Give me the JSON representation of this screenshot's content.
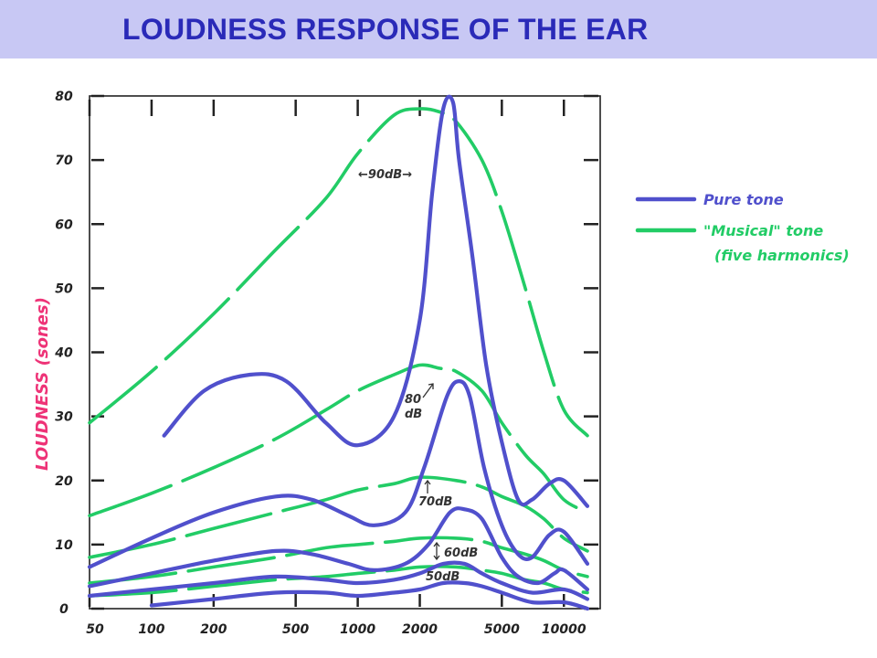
{
  "title": "LOUDNESS RESPONSE OF THE EAR",
  "colors": {
    "pure": "#5050cc",
    "musical": "#22cc66",
    "title_bg": "#c8c8f4",
    "title_text": "#2a2ab8",
    "ylabel": "#ee3377",
    "axis": "#222222"
  },
  "chart_data": {
    "type": "line",
    "title": "",
    "xlabel": "",
    "ylabel": "LOUDNESS (sones)",
    "xscale": "log",
    "xlim": [
      50,
      15000
    ],
    "ylim": [
      0,
      80
    ],
    "grid": false,
    "legend_position": "right",
    "x_ticks": [
      50,
      100,
      200,
      500,
      1000,
      2000,
      5000,
      10000
    ],
    "x_tick_labels": [
      "50",
      "100",
      "200",
      "500",
      "1000",
      "2000",
      "5000",
      "10000"
    ],
    "y_ticks": [
      0,
      10,
      20,
      30,
      40,
      50,
      60,
      70,
      80
    ],
    "y_tick_labels": [
      "0",
      "10",
      "20",
      "30",
      "40",
      "50",
      "60",
      "70",
      "80"
    ],
    "legend": [
      {
        "kind": "pure",
        "label": "Pure tone"
      },
      {
        "kind": "musical",
        "label": "\"Musical\" tone",
        "label2": "(five harmonics)"
      }
    ],
    "annotations": [
      "←90dB→",
      "80",
      "dB",
      "70dB",
      "60dB",
      "50dB"
    ],
    "series": [
      {
        "kind": "pure",
        "level": "90 dB",
        "points": [
          [
            115,
            27
          ],
          [
            180,
            34
          ],
          [
            300,
            36.5
          ],
          [
            450,
            35.5
          ],
          [
            700,
            29
          ],
          [
            1000,
            25.5
          ],
          [
            1500,
            30
          ],
          [
            2000,
            45
          ],
          [
            2300,
            65
          ],
          [
            2600,
            78
          ],
          [
            2900,
            79
          ],
          [
            3100,
            70
          ],
          [
            3600,
            55
          ],
          [
            4200,
            38
          ],
          [
            5000,
            26
          ],
          [
            6000,
            17
          ],
          [
            7000,
            17
          ],
          [
            8500,
            19.5
          ],
          [
            10000,
            20
          ],
          [
            13000,
            16
          ]
        ]
      },
      {
        "kind": "pure",
        "level": "80 dB",
        "points": [
          [
            50,
            6.5
          ],
          [
            100,
            11
          ],
          [
            200,
            15
          ],
          [
            400,
            17.5
          ],
          [
            600,
            17
          ],
          [
            900,
            14.5
          ],
          [
            1200,
            13
          ],
          [
            1700,
            15
          ],
          [
            2100,
            22
          ],
          [
            2700,
            33
          ],
          [
            3100,
            35.5
          ],
          [
            3500,
            33
          ],
          [
            4100,
            22
          ],
          [
            5000,
            13
          ],
          [
            6000,
            8.5
          ],
          [
            7000,
            8
          ],
          [
            8500,
            11.5
          ],
          [
            10000,
            12
          ],
          [
            13000,
            7
          ]
        ]
      },
      {
        "kind": "pure",
        "level": "70 dB",
        "points": [
          [
            50,
            3.5
          ],
          [
            100,
            5.5
          ],
          [
            200,
            7.5
          ],
          [
            400,
            9
          ],
          [
            600,
            8.5
          ],
          [
            900,
            7
          ],
          [
            1200,
            6
          ],
          [
            1700,
            7
          ],
          [
            2200,
            10
          ],
          [
            2800,
            15
          ],
          [
            3300,
            15.5
          ],
          [
            4000,
            14
          ],
          [
            5000,
            8
          ],
          [
            6000,
            5
          ],
          [
            7500,
            4
          ],
          [
            9000,
            5.5
          ],
          [
            10000,
            6
          ],
          [
            13000,
            3
          ]
        ]
      },
      {
        "kind": "pure",
        "level": "60 dB",
        "points": [
          [
            50,
            2
          ],
          [
            100,
            3
          ],
          [
            200,
            4
          ],
          [
            400,
            5
          ],
          [
            700,
            4.5
          ],
          [
            1000,
            4
          ],
          [
            1500,
            4.5
          ],
          [
            2000,
            5.5
          ],
          [
            2600,
            7
          ],
          [
            3300,
            7
          ],
          [
            4000,
            5.5
          ],
          [
            5000,
            4
          ],
          [
            7000,
            2.5
          ],
          [
            10000,
            3
          ],
          [
            13000,
            1.5
          ]
        ]
      },
      {
        "kind": "pure",
        "level": "50 dB",
        "points": [
          [
            100,
            0.5
          ],
          [
            200,
            1.5
          ],
          [
            400,
            2.5
          ],
          [
            700,
            2.5
          ],
          [
            1000,
            2
          ],
          [
            1500,
            2.5
          ],
          [
            2000,
            3
          ],
          [
            2600,
            4
          ],
          [
            3300,
            4
          ],
          [
            4000,
            3.5
          ],
          [
            5000,
            2.5
          ],
          [
            7000,
            1
          ],
          [
            10000,
            1
          ],
          [
            13000,
            0
          ]
        ]
      },
      {
        "kind": "musical",
        "level": "90 dB",
        "points": [
          [
            50,
            29
          ],
          [
            100,
            37
          ],
          [
            200,
            46
          ],
          [
            400,
            56
          ],
          [
            700,
            64
          ],
          [
            1000,
            71
          ],
          [
            1500,
            77
          ],
          [
            2000,
            78
          ],
          [
            2500,
            77.5
          ],
          [
            3000,
            76
          ],
          [
            4000,
            70
          ],
          [
            5000,
            62
          ],
          [
            6500,
            50
          ],
          [
            8000,
            40
          ],
          [
            10000,
            31
          ],
          [
            13000,
            27
          ]
        ]
      },
      {
        "kind": "musical",
        "level": "80 dB",
        "points": [
          [
            50,
            14.5
          ],
          [
            100,
            18
          ],
          [
            200,
            22
          ],
          [
            400,
            26.5
          ],
          [
            700,
            31
          ],
          [
            1000,
            34
          ],
          [
            1500,
            36.5
          ],
          [
            2000,
            38
          ],
          [
            2500,
            37.5
          ],
          [
            3000,
            37
          ],
          [
            4000,
            34
          ],
          [
            5000,
            29
          ],
          [
            6500,
            24
          ],
          [
            8000,
            21
          ],
          [
            10000,
            17
          ],
          [
            13000,
            15
          ]
        ]
      },
      {
        "kind": "musical",
        "level": "70 dB",
        "points": [
          [
            50,
            8
          ],
          [
            100,
            10
          ],
          [
            200,
            12.5
          ],
          [
            400,
            15
          ],
          [
            700,
            17
          ],
          [
            1000,
            18.5
          ],
          [
            1500,
            19.5
          ],
          [
            2000,
            20.5
          ],
          [
            3000,
            20
          ],
          [
            4000,
            19
          ],
          [
            5000,
            17.5
          ],
          [
            6500,
            16
          ],
          [
            8000,
            14
          ],
          [
            10000,
            11
          ],
          [
            13000,
            9
          ]
        ]
      },
      {
        "kind": "musical",
        "level": "60 dB",
        "points": [
          [
            50,
            4
          ],
          [
            100,
            5
          ],
          [
            200,
            6.5
          ],
          [
            400,
            8
          ],
          [
            700,
            9.5
          ],
          [
            1000,
            10
          ],
          [
            1500,
            10.5
          ],
          [
            2000,
            11
          ],
          [
            3000,
            11
          ],
          [
            4000,
            10.5
          ],
          [
            5000,
            9.5
          ],
          [
            6500,
            8.5
          ],
          [
            8000,
            7.5
          ],
          [
            10000,
            6
          ],
          [
            13000,
            5
          ]
        ]
      },
      {
        "kind": "musical",
        "level": "50 dB",
        "points": [
          [
            50,
            2
          ],
          [
            100,
            2.5
          ],
          [
            200,
            3.5
          ],
          [
            400,
            4.5
          ],
          [
            700,
            5
          ],
          [
            1000,
            5.5
          ],
          [
            1500,
            6
          ],
          [
            2000,
            6.5
          ],
          [
            3000,
            6.5
          ],
          [
            4000,
            6
          ],
          [
            5000,
            5.5
          ],
          [
            6500,
            4.5
          ],
          [
            8000,
            4
          ],
          [
            10000,
            3
          ],
          [
            13000,
            2.5
          ]
        ]
      }
    ]
  }
}
